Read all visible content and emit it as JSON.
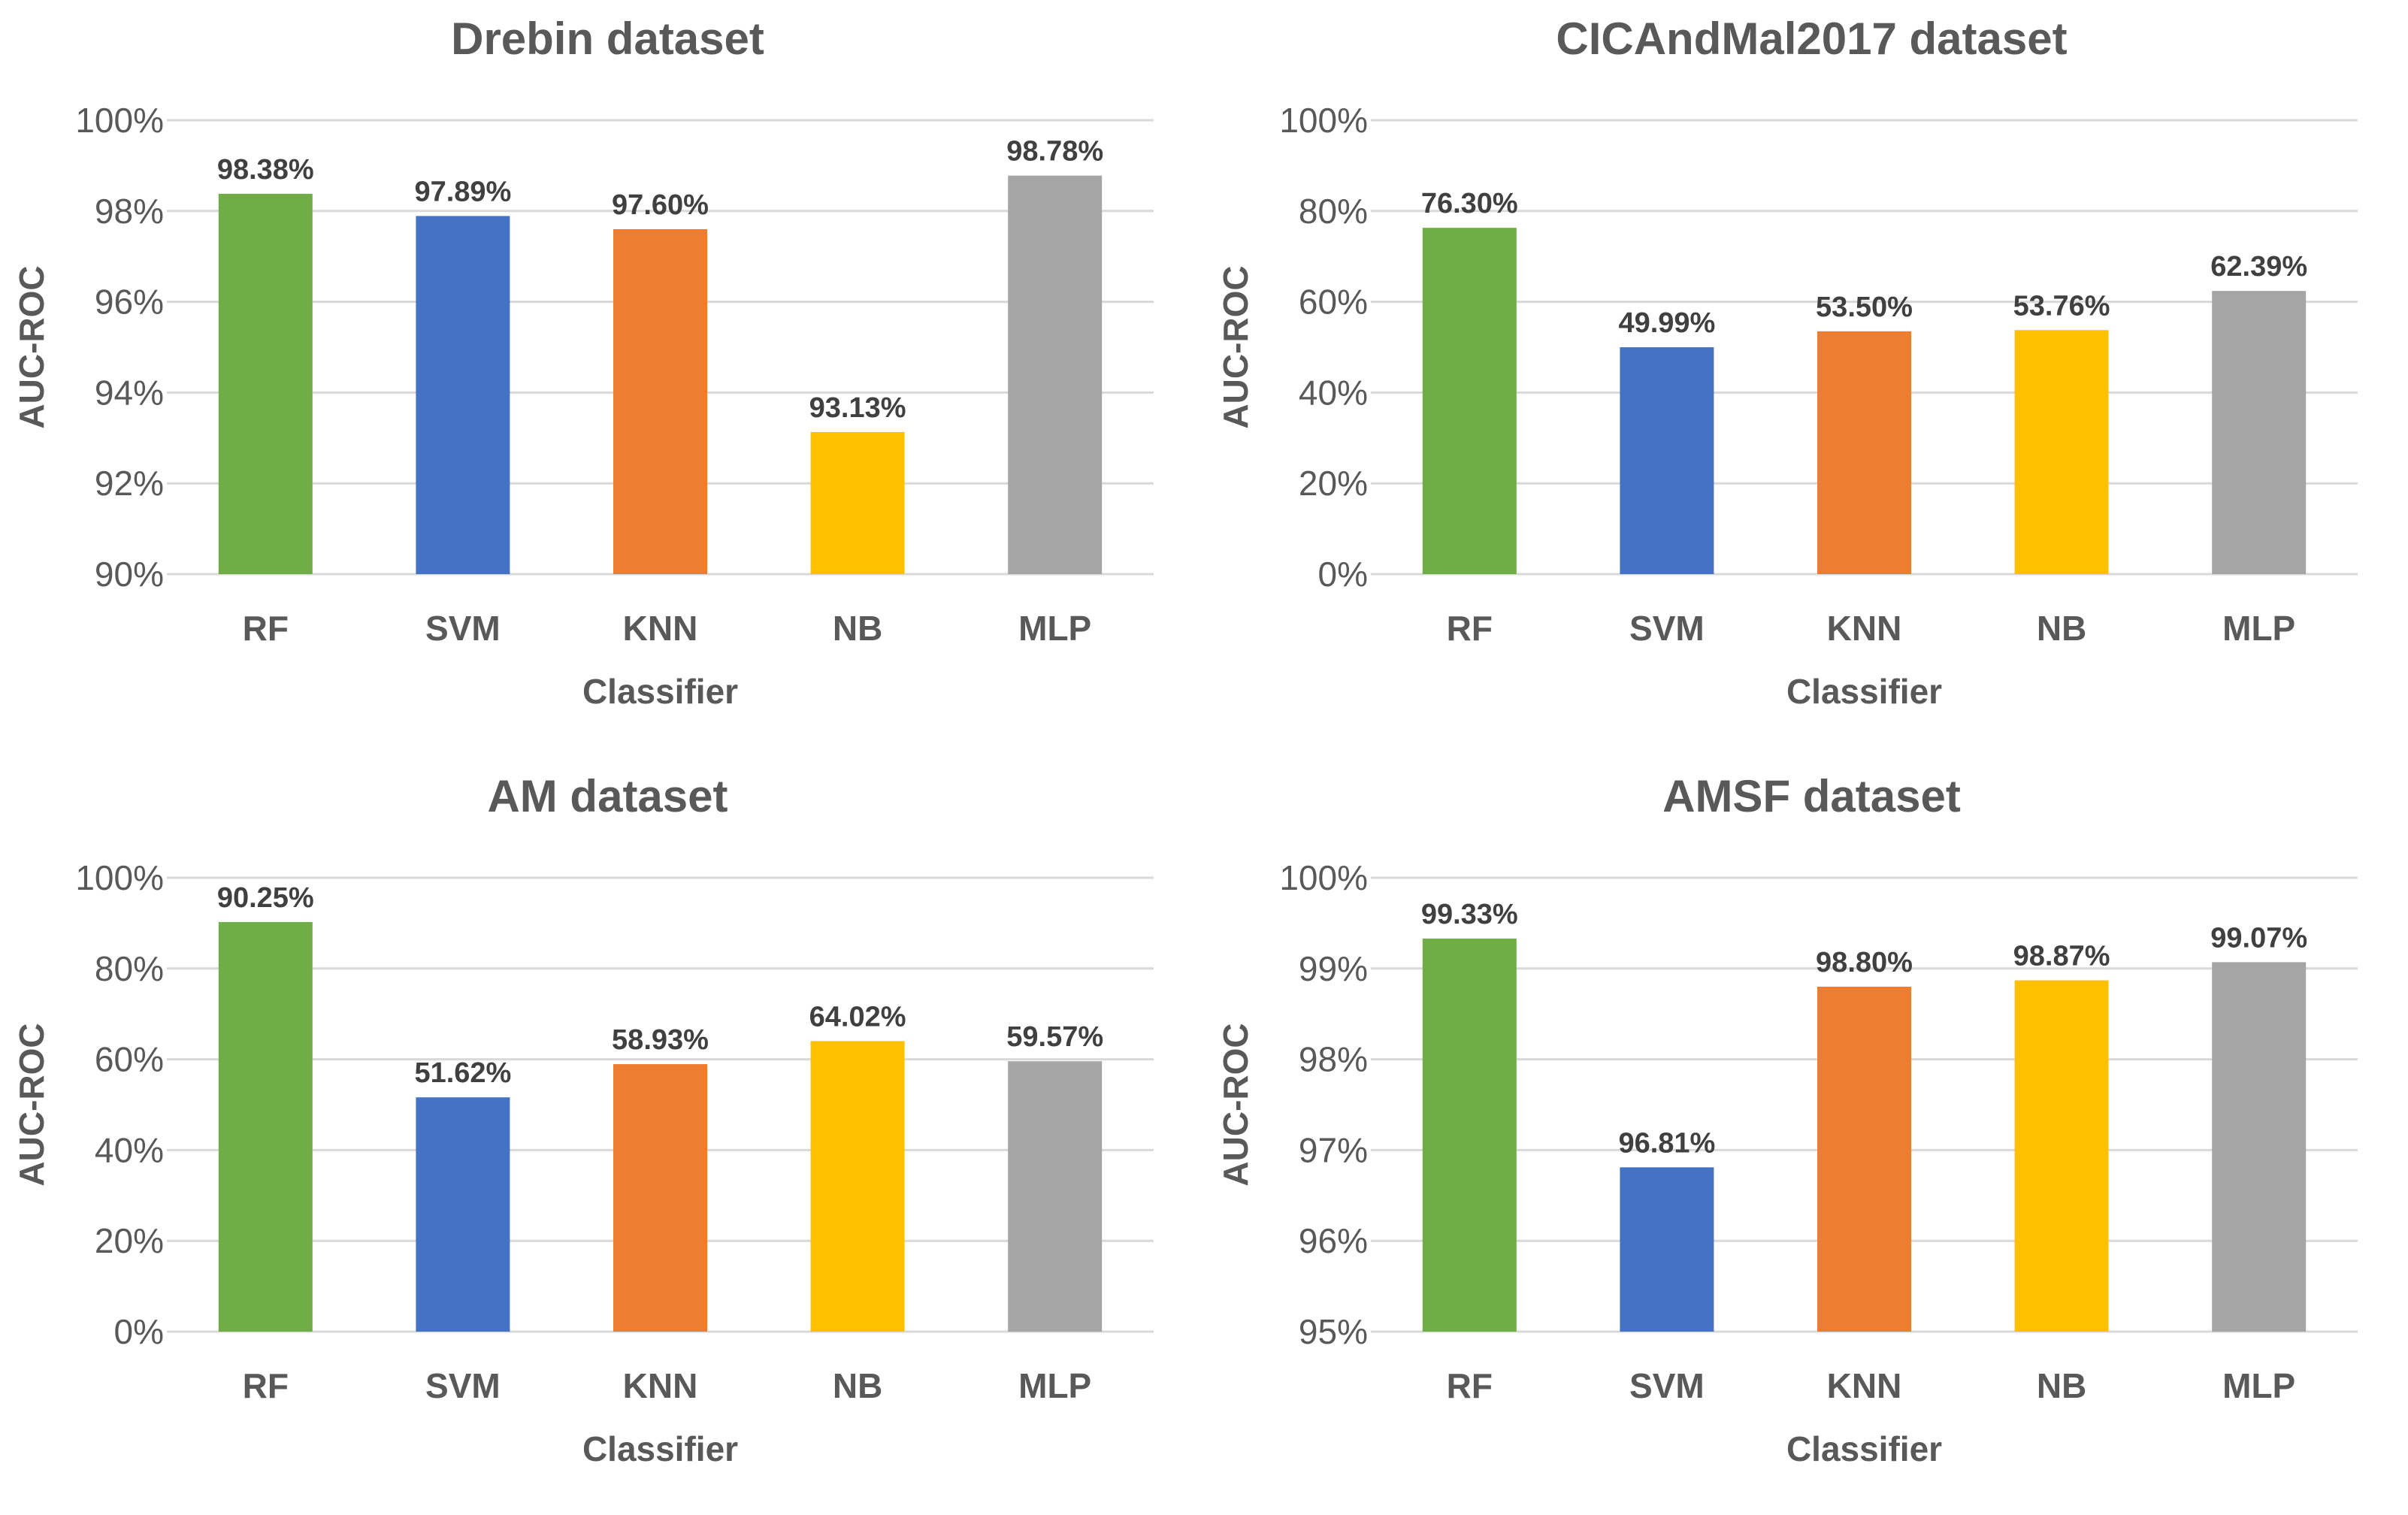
{
  "colors": {
    "RF": "#70ad47",
    "SVM": "#4472c4",
    "KNN": "#ed7d31",
    "NB": "#ffc000",
    "MLP": "#a5a5a5"
  },
  "chart_data": [
    {
      "type": "bar",
      "title": "Drebin dataset",
      "xlabel": "Classifier",
      "ylabel": "AUC-ROC",
      "categories": [
        "RF",
        "SVM",
        "KNN",
        "NB",
        "MLP"
      ],
      "values": [
        98.38,
        97.89,
        97.6,
        93.13,
        98.78
      ],
      "data_labels": [
        "98.38%",
        "97.89%",
        "97.60%",
        "93.13%",
        "98.78%"
      ],
      "ylim": [
        90,
        100
      ],
      "yticks": [
        90,
        92,
        94,
        96,
        98,
        100
      ],
      "ytick_labels": [
        "90%",
        "92%",
        "94%",
        "96%",
        "98%",
        "100%"
      ],
      "grid": true
    },
    {
      "type": "bar",
      "title": "CICAndMal2017 dataset",
      "xlabel": "Classifier",
      "ylabel": "AUC-ROC",
      "categories": [
        "RF",
        "SVM",
        "KNN",
        "NB",
        "MLP"
      ],
      "values": [
        76.3,
        49.99,
        53.5,
        53.76,
        62.39
      ],
      "data_labels": [
        "76.30%",
        "49.99%",
        "53.50%",
        "53.76%",
        "62.39%"
      ],
      "ylim": [
        0,
        100
      ],
      "yticks": [
        0,
        20,
        40,
        60,
        80,
        100
      ],
      "ytick_labels": [
        "0%",
        "20%",
        "40%",
        "60%",
        "80%",
        "100%"
      ],
      "grid": true
    },
    {
      "type": "bar",
      "title": "AM dataset",
      "xlabel": "Classifier",
      "ylabel": "AUC-ROC",
      "categories": [
        "RF",
        "SVM",
        "KNN",
        "NB",
        "MLP"
      ],
      "values": [
        90.25,
        51.62,
        58.93,
        64.02,
        59.57
      ],
      "data_labels": [
        "90.25%",
        "51.62%",
        "58.93%",
        "64.02%",
        "59.57%"
      ],
      "ylim": [
        0,
        100
      ],
      "yticks": [
        0,
        20,
        40,
        60,
        80,
        100
      ],
      "ytick_labels": [
        "0%",
        "20%",
        "40%",
        "60%",
        "80%",
        "100%"
      ],
      "grid": true
    },
    {
      "type": "bar",
      "title": "AMSF dataset",
      "xlabel": "Classifier",
      "ylabel": "AUC-ROC",
      "categories": [
        "RF",
        "SVM",
        "KNN",
        "NB",
        "MLP"
      ],
      "values": [
        99.33,
        96.81,
        98.8,
        98.87,
        99.07
      ],
      "data_labels": [
        "99.33%",
        "96.81%",
        "98.80%",
        "98.87%",
        "99.07%"
      ],
      "ylim": [
        95,
        100
      ],
      "yticks": [
        95,
        96,
        97,
        98,
        99,
        100
      ],
      "ytick_labels": [
        "95%",
        "96%",
        "97%",
        "98%",
        "99%",
        "100%"
      ],
      "grid": true
    }
  ]
}
